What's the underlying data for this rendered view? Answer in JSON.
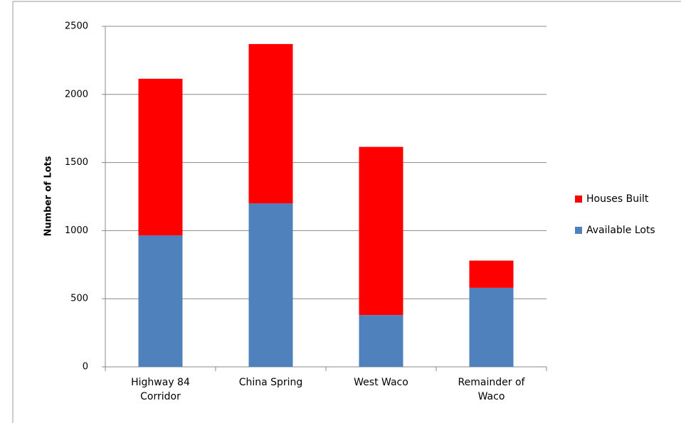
{
  "chart_data": {
    "type": "stacked_bar",
    "categories": [
      "Highway 84 Corridor",
      "China Spring",
      "West Waco",
      "Remainder of Waco"
    ],
    "series": [
      {
        "name": "Available Lots",
        "color": "#4f81bd",
        "values": [
          965,
          1200,
          380,
          580
        ]
      },
      {
        "name": "Houses Built",
        "color": "#ff0000",
        "values": [
          1150,
          1170,
          1235,
          200
        ]
      }
    ],
    "y_label": "Number of Lots",
    "ylim": [
      0,
      2500
    ],
    "yticks": [
      0,
      500,
      1000,
      1500,
      2000,
      2500
    ],
    "grid": true,
    "legend": "right"
  }
}
